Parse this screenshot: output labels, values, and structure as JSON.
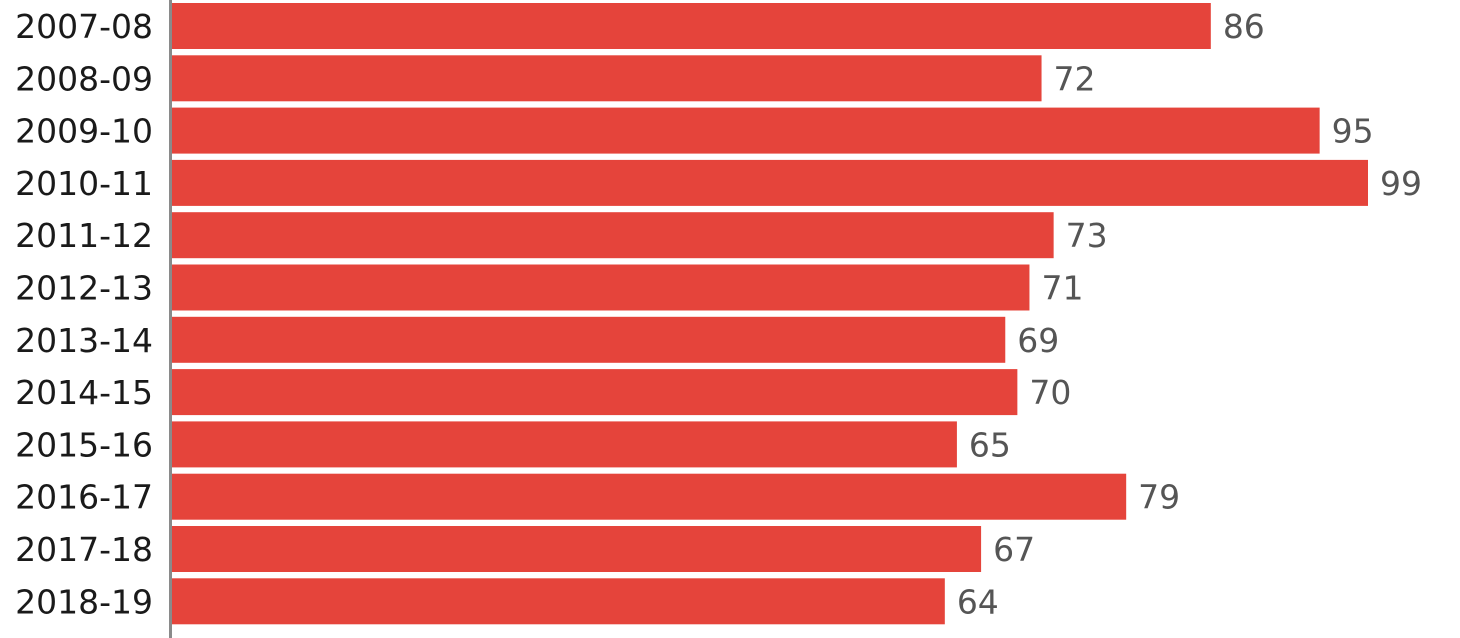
{
  "chart_data": {
    "type": "bar",
    "orientation": "horizontal",
    "categories": [
      "2007-08",
      "2008-09",
      "2009-10",
      "2010-11",
      "2011-12",
      "2012-13",
      "2013-14",
      "2014-15",
      "2015-16",
      "2016-17",
      "2017-18",
      "2018-19"
    ],
    "values": [
      86,
      72,
      95,
      99,
      73,
      71,
      69,
      70,
      65,
      79,
      67,
      64
    ],
    "title": "",
    "xlabel": "",
    "ylabel": "",
    "xlim": [
      0,
      99
    ],
    "grid": false,
    "legend": "none",
    "data_labels": true,
    "colors": {
      "bar": "#e5443b",
      "axis": "#8a8a8a",
      "category_text": "#1a1a1a",
      "value_text": "#555555"
    }
  }
}
